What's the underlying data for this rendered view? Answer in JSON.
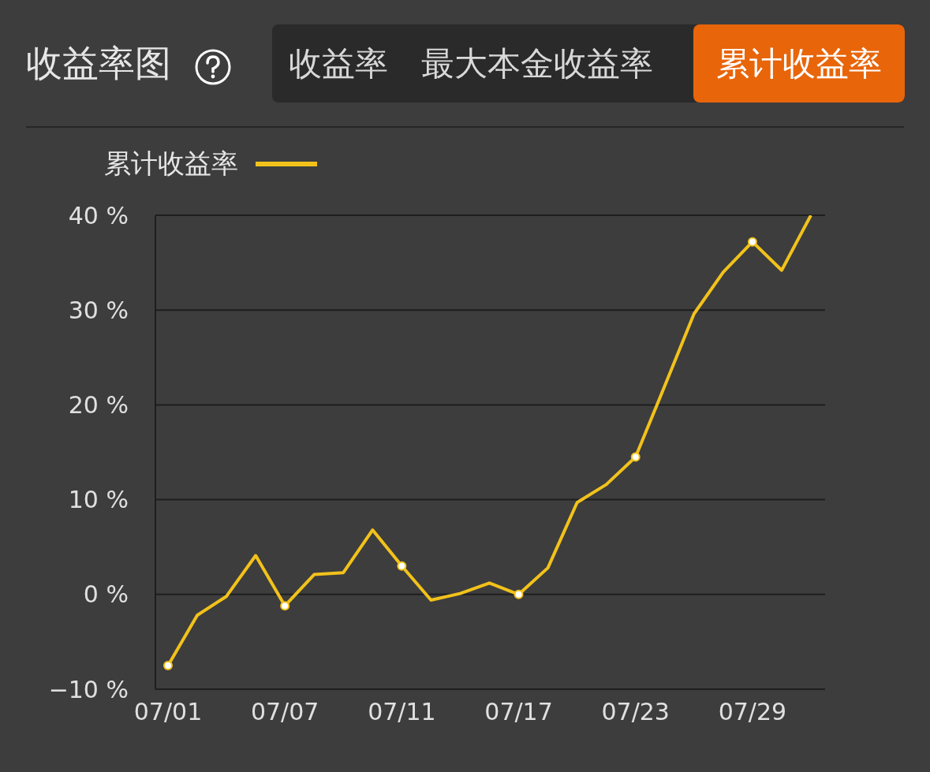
{
  "chart_data": {
    "type": "line",
    "title": "收益率图",
    "annotations": [
      "收益率",
      "最大本金收益率",
      "累计收益率"
    ],
    "categories": [
      "07/01",
      null,
      null,
      null,
      "07/07",
      null,
      null,
      null,
      "07/11",
      null,
      null,
      null,
      "07/17",
      null,
      null,
      null,
      "07/23",
      null,
      null,
      null,
      "07/29",
      null,
      null
    ],
    "series": [
      {
        "name": "累计收益率",
        "color": "#f2c21b",
        "values": [
          -7.5,
          -2.2,
          -0.2,
          4.1,
          -1.2,
          2.1,
          2.3,
          6.8,
          3.0,
          -0.6,
          0.1,
          1.2,
          0.0,
          2.8,
          9.7,
          11.6,
          14.5,
          22.0,
          29.6,
          34.0,
          37.2,
          34.2,
          40.0
        ]
      }
    ],
    "ylim": [
      -10,
      40
    ],
    "yticks": [
      {
        "value": -10,
        "label": "−10 %"
      },
      {
        "value": 0,
        "label": "0 %"
      },
      {
        "value": 10,
        "label": "10 %"
      },
      {
        "value": 20,
        "label": "20 %"
      },
      {
        "value": 30,
        "label": "30 %"
      },
      {
        "value": 40,
        "label": "40 %"
      }
    ],
    "grid": "y",
    "legend": "top left",
    "line_style": "solid"
  }
}
